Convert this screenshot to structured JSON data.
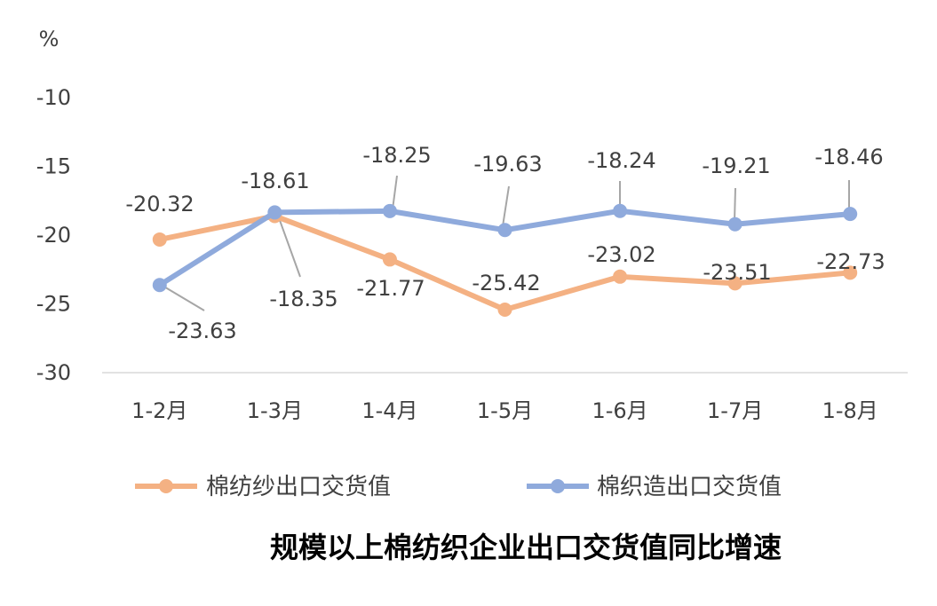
{
  "chart_data": {
    "type": "line",
    "title": "规模以上棉纺织企业出口交货值同比增速",
    "ylabel": "%",
    "xlabel": "",
    "categories": [
      "1-2月",
      "1-3月",
      "1-4月",
      "1-5月",
      "1-6月",
      "1-7月",
      "1-8月"
    ],
    "ylim": [
      -30,
      -10
    ],
    "yticks": [
      -10,
      -15,
      -20,
      -25,
      -30
    ],
    "grid": false,
    "legend_position": "bottom",
    "series": [
      {
        "name": "棉纺纱出口交货值",
        "color": "#F4B183",
        "values": [
          -20.32,
          -18.61,
          -21.77,
          -25.42,
          -23.02,
          -23.51,
          -22.73
        ],
        "labels": [
          "-20.32",
          "-18.61",
          "-21.77",
          "-25.42",
          "-23.02",
          "-23.51",
          "-22.73"
        ]
      },
      {
        "name": "棉织造出口交货值",
        "color": "#8FAADC",
        "values": [
          -23.63,
          -18.35,
          -18.25,
          -19.63,
          -18.24,
          -19.21,
          -18.46
        ],
        "labels": [
          "-23.63",
          "-18.35",
          "-18.25",
          "-19.63",
          "-18.24",
          "-19.21",
          "-18.46"
        ]
      }
    ]
  }
}
